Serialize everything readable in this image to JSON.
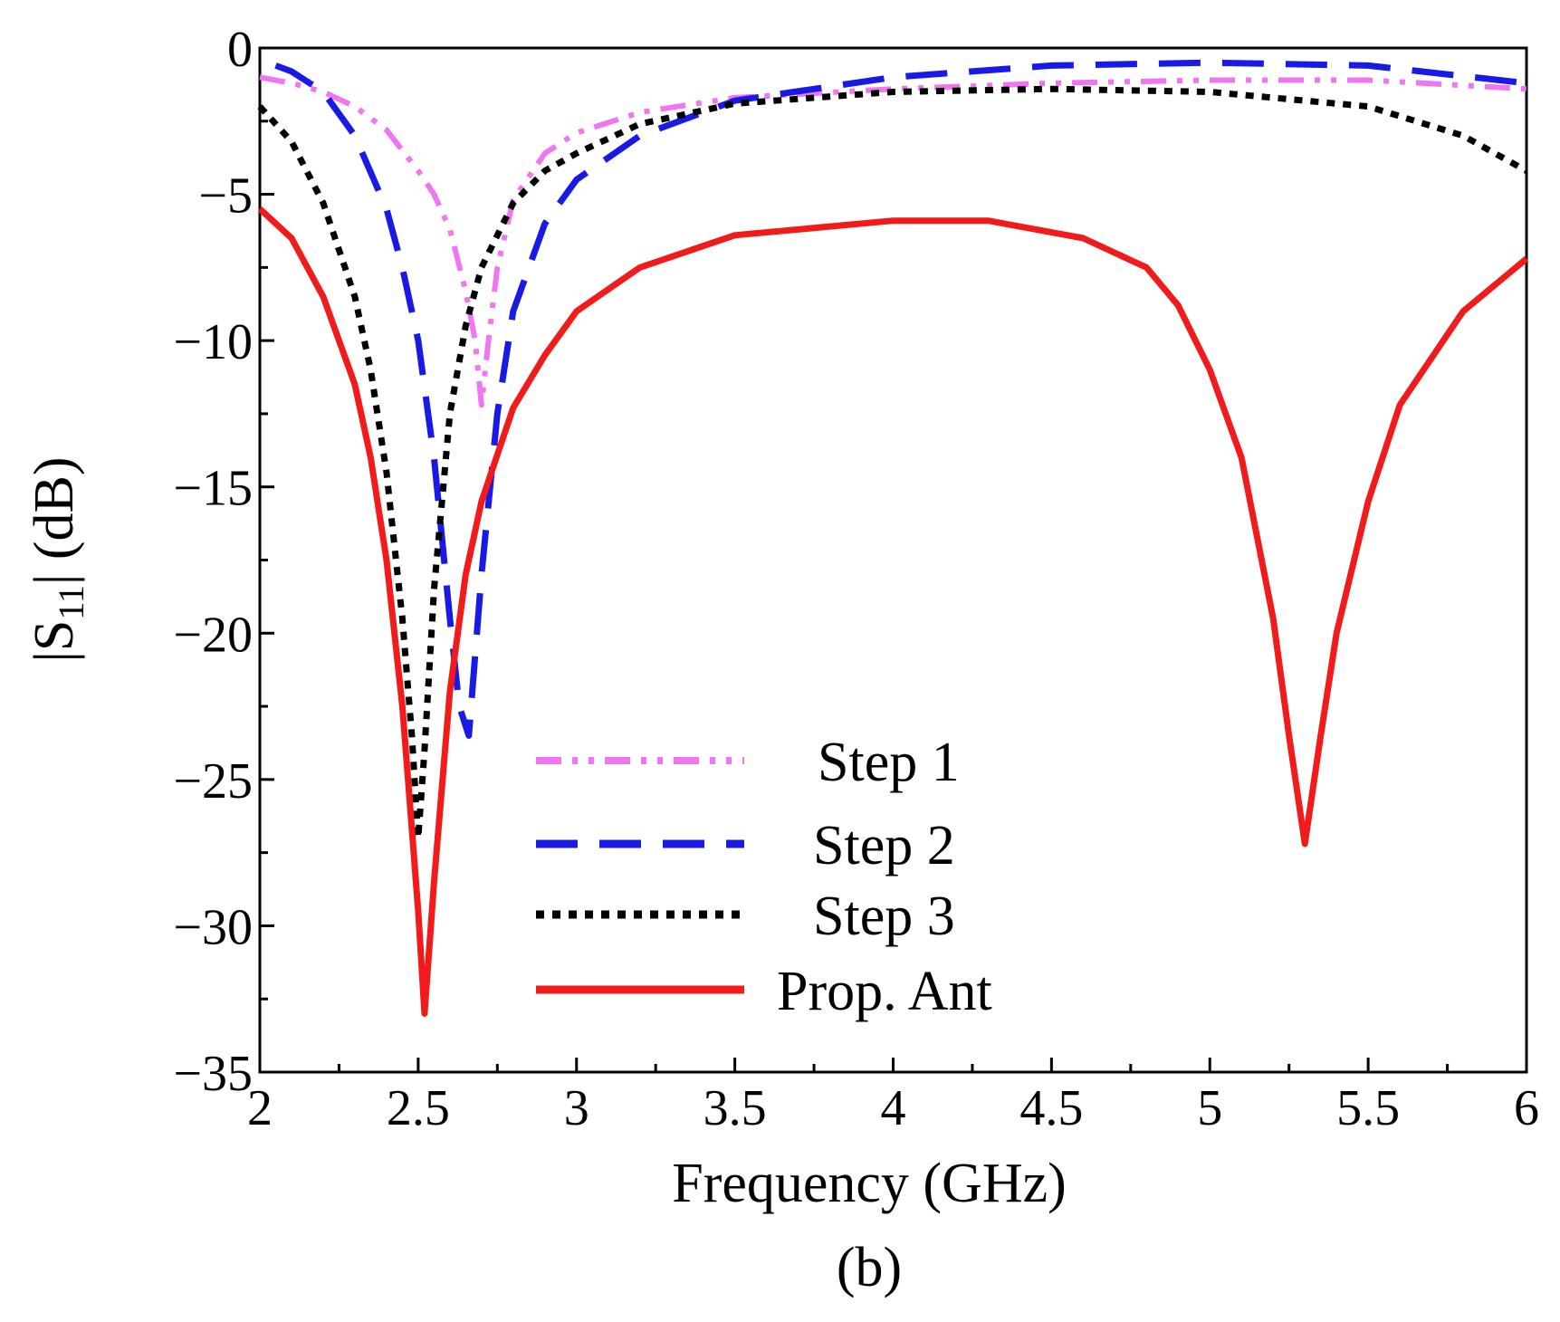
{
  "chart_data": {
    "type": "line",
    "title": "",
    "caption": "(b)",
    "xlabel": "Frequency (GHz)",
    "ylabel_main": "|S",
    "ylabel_sub": "11",
    "ylabel_tail": "| (dB)",
    "xlim": [
      2,
      6
    ],
    "ylim": [
      -35,
      0
    ],
    "xticks": [
      2,
      2.5,
      3,
      3.5,
      4,
      4.5,
      5,
      5.5,
      6
    ],
    "xtick_labels": [
      "2",
      "2.5",
      "3",
      "3.5",
      "4",
      "4.5",
      "5",
      "5.5",
      "6"
    ],
    "yticks": [
      0,
      -5,
      -10,
      -15,
      -20,
      -25,
      -30,
      -35
    ],
    "ytick_labels": [
      "0",
      "−5",
      "−10",
      "−15",
      "−20",
      "−25",
      "−30",
      "−35"
    ],
    "grid": false,
    "legend_position": "bottom-center",
    "series": [
      {
        "name": "Step 1",
        "color": "#f075f0",
        "style": "dash-dot-dot",
        "x": [
          2.0,
          2.1,
          2.2,
          2.3,
          2.4,
          2.5,
          2.55,
          2.6,
          2.65,
          2.68,
          2.7,
          2.72,
          2.75,
          2.8,
          2.9,
          3.0,
          3.2,
          3.5,
          4.0,
          4.5,
          5.0,
          5.5,
          6.0
        ],
        "y": [
          -1.0,
          -1.2,
          -1.5,
          -2.0,
          -2.8,
          -4.2,
          -5.0,
          -6.2,
          -8.3,
          -10.0,
          -12.2,
          -10.2,
          -7.5,
          -5.2,
          -3.6,
          -2.9,
          -2.2,
          -1.7,
          -1.4,
          -1.2,
          -1.1,
          -1.1,
          -1.4
        ]
      },
      {
        "name": "Step 2",
        "color": "#1a1ae6",
        "style": "long-dash",
        "x": [
          2.05,
          2.1,
          2.2,
          2.3,
          2.4,
          2.45,
          2.5,
          2.55,
          2.6,
          2.63,
          2.66,
          2.7,
          2.75,
          2.8,
          2.9,
          3.0,
          3.2,
          3.5,
          4.0,
          4.5,
          5.0,
          5.5,
          6.0
        ],
        "y": [
          -0.6,
          -0.8,
          -1.5,
          -3.0,
          -5.5,
          -7.5,
          -10.0,
          -14.0,
          -19.5,
          -22.5,
          -23.5,
          -18.0,
          -12.5,
          -9.0,
          -6.0,
          -4.5,
          -3.0,
          -1.8,
          -1.0,
          -0.6,
          -0.5,
          -0.6,
          -1.2
        ]
      },
      {
        "name": "Step 3",
        "color": "#000000",
        "style": "dotted",
        "x": [
          2.0,
          2.1,
          2.2,
          2.3,
          2.35,
          2.4,
          2.45,
          2.48,
          2.5,
          2.52,
          2.55,
          2.6,
          2.65,
          2.7,
          2.8,
          2.9,
          3.0,
          3.2,
          3.5,
          4.0,
          4.5,
          5.0,
          5.5,
          5.8,
          6.0
        ],
        "y": [
          -2.0,
          -3.2,
          -5.3,
          -8.5,
          -11.0,
          -14.5,
          -19.5,
          -23.5,
          -27.0,
          -24.0,
          -18.5,
          -12.5,
          -9.5,
          -7.5,
          -5.3,
          -4.2,
          -3.6,
          -2.6,
          -1.9,
          -1.5,
          -1.4,
          -1.5,
          -2.0,
          -3.0,
          -4.2
        ]
      },
      {
        "name": "Prop. Ant",
        "color": "#f21b1b",
        "style": "solid",
        "x": [
          2.0,
          2.1,
          2.2,
          2.3,
          2.35,
          2.4,
          2.45,
          2.5,
          2.52,
          2.55,
          2.6,
          2.65,
          2.7,
          2.8,
          2.9,
          3.0,
          3.2,
          3.5,
          4.0,
          4.3,
          4.6,
          4.8,
          4.9,
          5.0,
          5.1,
          5.2,
          5.25,
          5.3,
          5.35,
          5.4,
          5.5,
          5.6,
          5.8,
          6.0
        ],
        "y": [
          -5.5,
          -6.5,
          -8.5,
          -11.5,
          -14.0,
          -17.5,
          -22.5,
          -29.5,
          -33.0,
          -28.5,
          -22.0,
          -18.0,
          -15.5,
          -12.3,
          -10.5,
          -9.0,
          -7.5,
          -6.4,
          -5.9,
          -5.9,
          -6.5,
          -7.5,
          -8.8,
          -11.0,
          -14.0,
          -19.5,
          -23.5,
          -27.2,
          -23.5,
          -20.0,
          -15.5,
          -12.2,
          -9.0,
          -7.2
        ]
      }
    ]
  }
}
